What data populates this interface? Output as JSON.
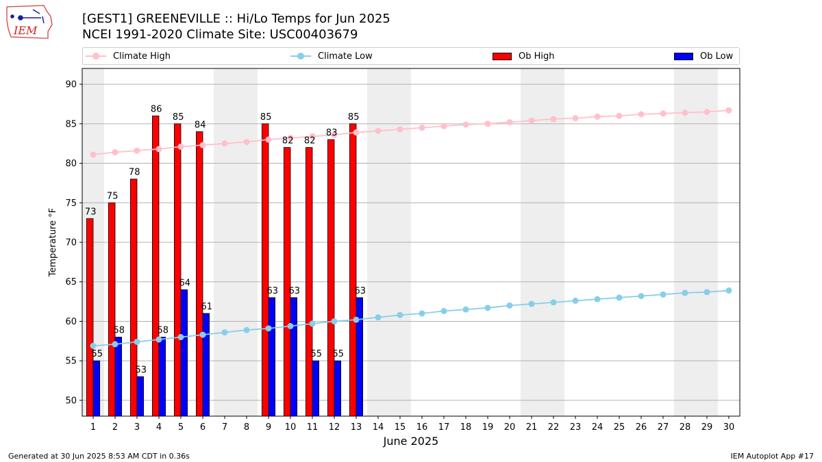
{
  "header": {
    "title_line1": "[GEST1] GREENEVILLE :: Hi/Lo Temps for Jun 2025",
    "title_line2": "NCEI 1991-2020 Climate Site: USC00403679",
    "logo_text": "IEM"
  },
  "legend": {
    "placement": "top",
    "items": [
      {
        "label": "Climate High",
        "color": "#ffc0cb",
        "kind": "line"
      },
      {
        "label": "Climate Low",
        "color": "#87ceeb",
        "kind": "line"
      },
      {
        "label": "Ob High",
        "color": "#ff0000",
        "kind": "bar"
      },
      {
        "label": "Ob Low",
        "color": "#0000ff",
        "kind": "bar"
      }
    ]
  },
  "footer": {
    "left": "Generated at 30 Jun 2025 8:53 AM CDT in 0.36s",
    "right": "IEM Autoplot App #17"
  },
  "chart_data": {
    "type": "bar",
    "xlabel": "June 2025",
    "ylabel": "Temperature °F",
    "xlim": [
      0.5,
      30.5
    ],
    "ylim": [
      48,
      92
    ],
    "yticks": [
      50,
      55,
      60,
      65,
      70,
      75,
      80,
      85,
      90
    ],
    "grid": true,
    "categories": [
      "1",
      "2",
      "3",
      "4",
      "5",
      "6",
      "7",
      "8",
      "9",
      "10",
      "11",
      "12",
      "13",
      "14",
      "15",
      "16",
      "17",
      "18",
      "19",
      "20",
      "21",
      "22",
      "23",
      "24",
      "25",
      "26",
      "27",
      "28",
      "29",
      "30"
    ],
    "weekend_shading": [
      [
        1,
        1
      ],
      [
        7,
        8
      ],
      [
        14,
        15
      ],
      [
        21,
        22
      ],
      [
        28,
        29
      ]
    ],
    "series": [
      {
        "name": "Ob High",
        "type": "bar",
        "color": "#ff0000",
        "values": [
          73,
          75,
          78,
          86,
          85,
          84,
          null,
          null,
          85,
          82,
          82,
          83,
          85,
          null,
          null,
          null,
          null,
          null,
          null,
          null,
          null,
          null,
          null,
          null,
          null,
          null,
          null,
          null,
          null,
          null
        ]
      },
      {
        "name": "Ob Low",
        "type": "bar",
        "color": "#0000ff",
        "values": [
          55,
          58,
          53,
          58,
          64,
          61,
          null,
          null,
          63,
          63,
          55,
          55,
          63,
          null,
          null,
          null,
          null,
          null,
          null,
          null,
          null,
          null,
          null,
          null,
          null,
          null,
          null,
          null,
          null,
          null
        ]
      },
      {
        "name": "Climate High",
        "type": "line",
        "color": "#ffc0cb",
        "values": [
          81.1,
          81.4,
          81.6,
          81.8,
          82.1,
          82.3,
          82.5,
          82.7,
          83.0,
          83.2,
          83.4,
          83.6,
          83.9,
          84.1,
          84.3,
          84.5,
          84.7,
          84.9,
          85.0,
          85.2,
          85.4,
          85.6,
          85.7,
          85.9,
          86.0,
          86.2,
          86.3,
          86.4,
          86.5,
          86.7
        ]
      },
      {
        "name": "Climate Low",
        "type": "line",
        "color": "#87ceeb",
        "values": [
          56.9,
          57.1,
          57.4,
          57.7,
          58.0,
          58.3,
          58.6,
          58.9,
          59.1,
          59.4,
          59.7,
          60.0,
          60.2,
          60.5,
          60.8,
          61.0,
          61.3,
          61.5,
          61.7,
          62.0,
          62.2,
          62.4,
          62.6,
          62.8,
          63.0,
          63.2,
          63.4,
          63.6,
          63.7,
          63.9
        ]
      }
    ]
  }
}
